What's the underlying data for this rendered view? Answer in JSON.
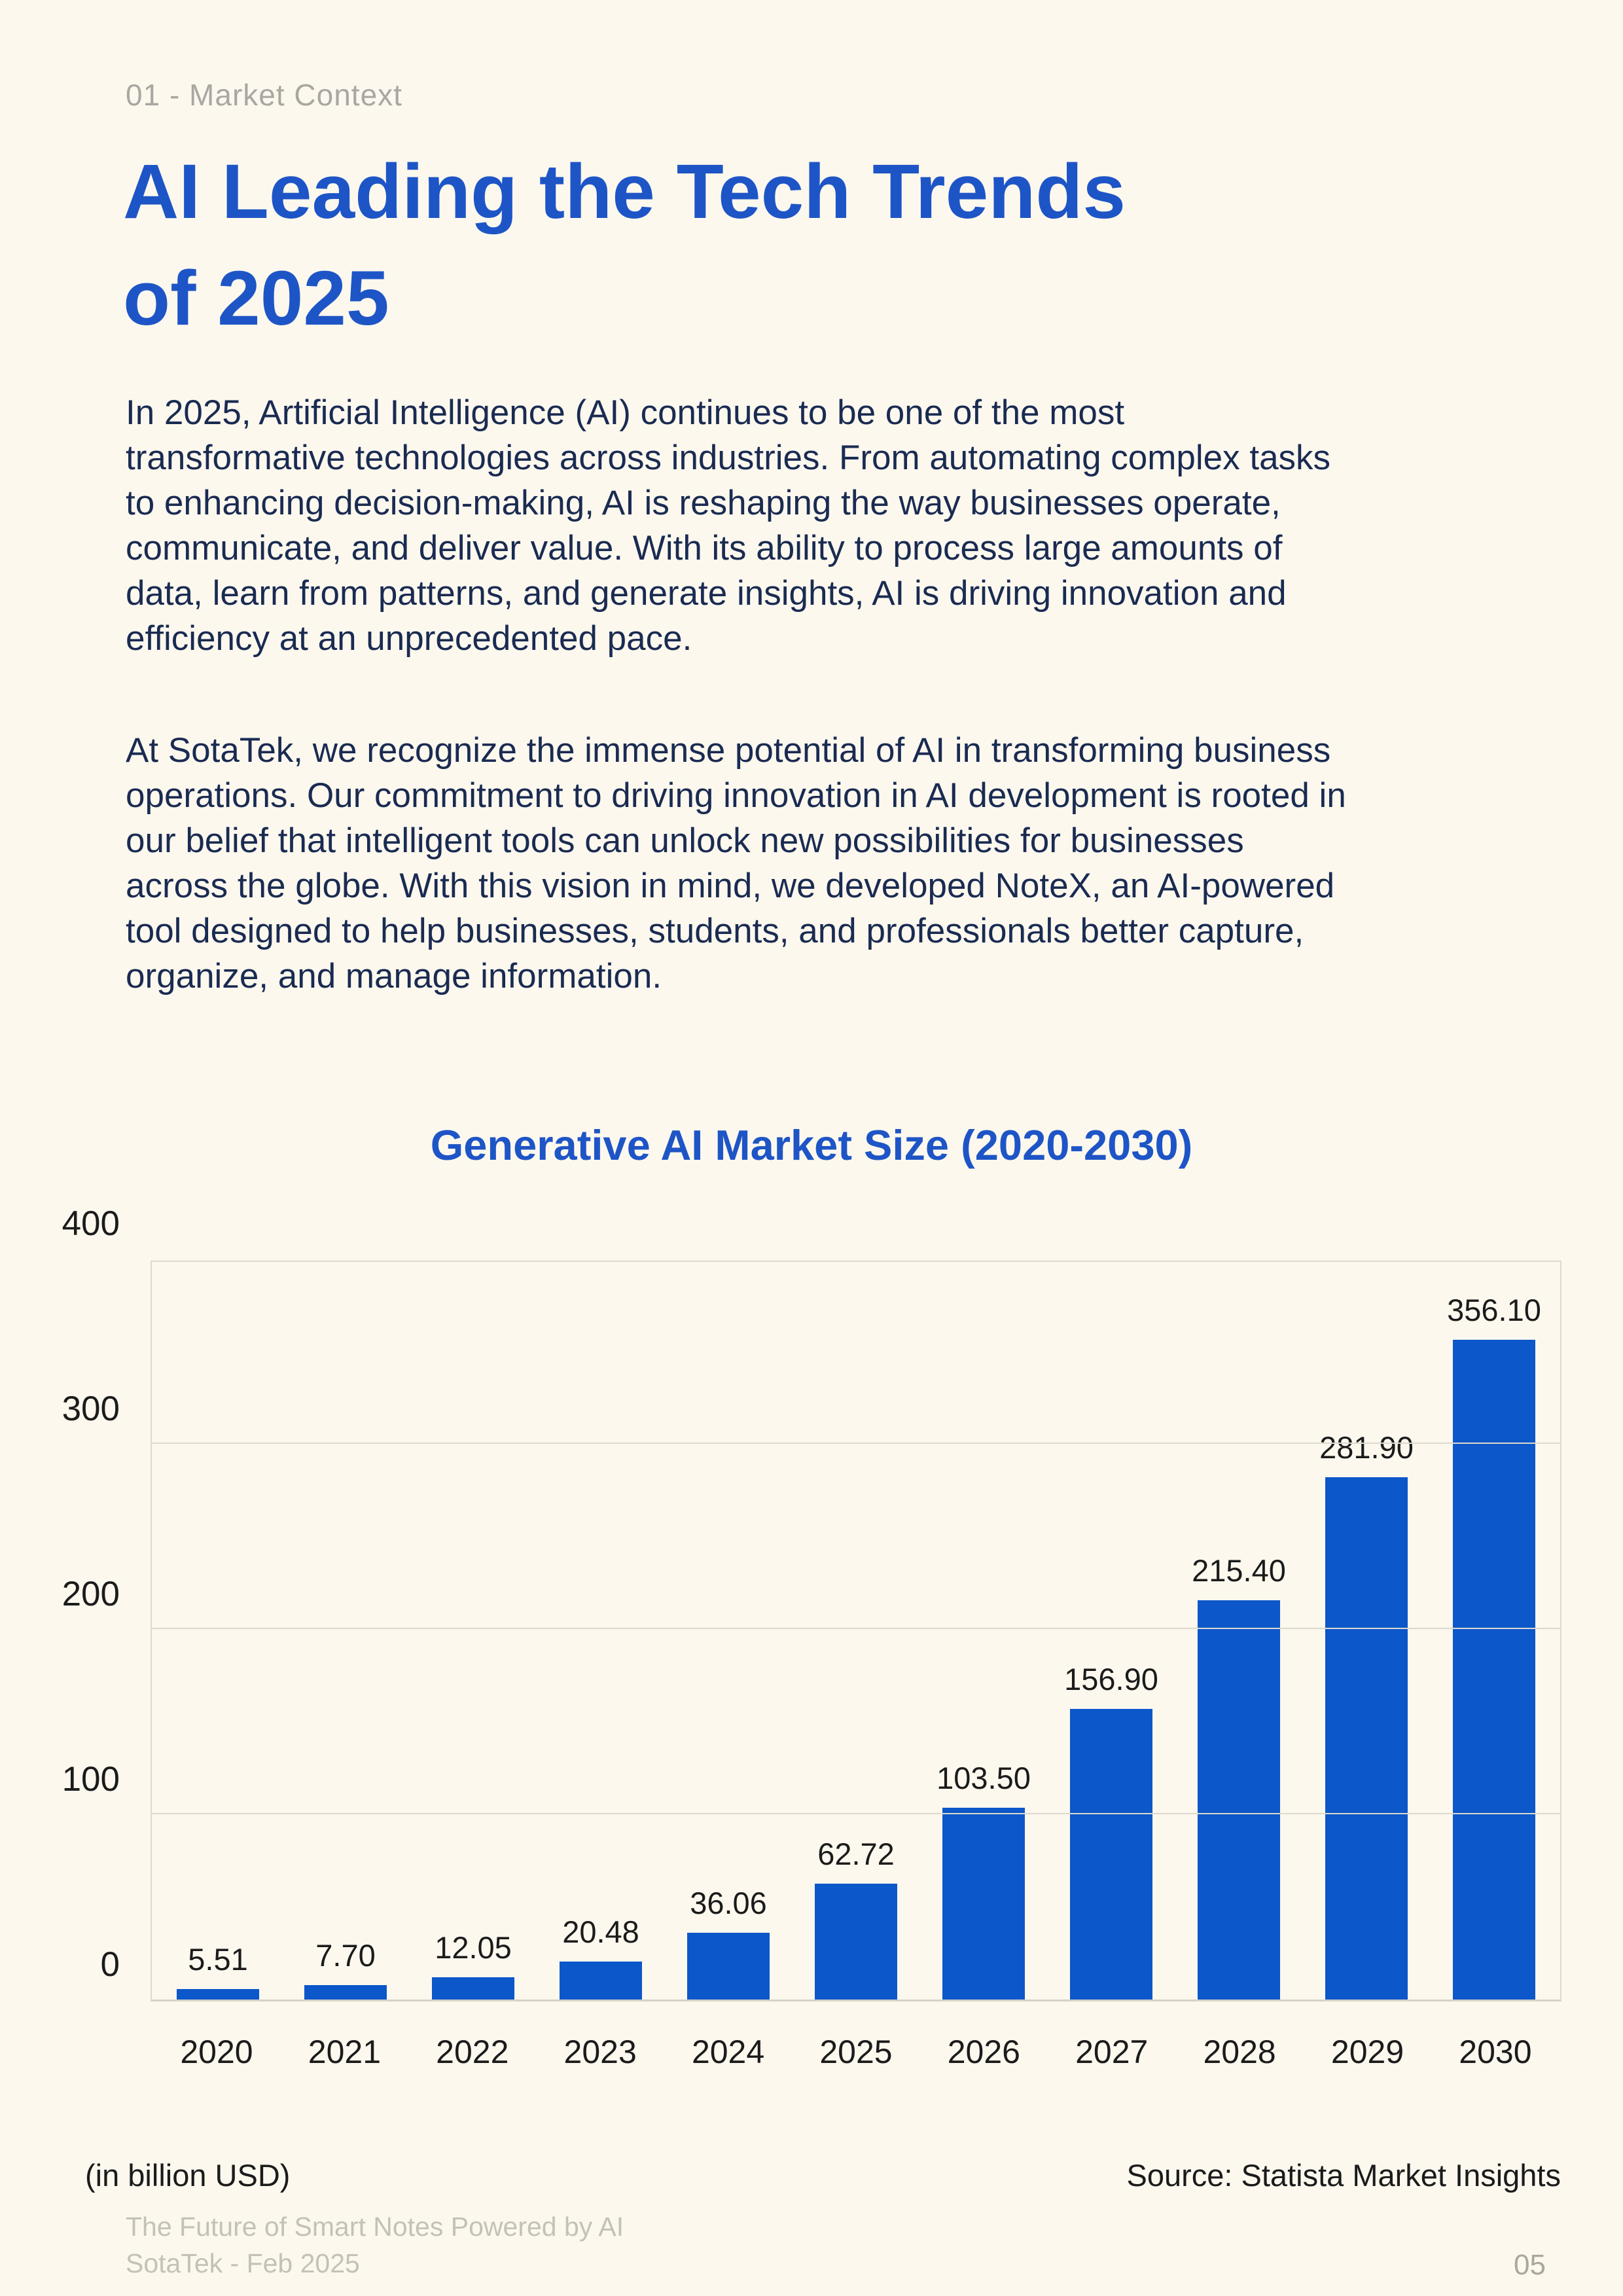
{
  "page": {
    "eyebrow": "01 - Market Context",
    "title_line1": "AI Leading the Tech Trends",
    "title_line2": "of 2025",
    "paragraph1_lines": [
      "In 2025, Artificial Intelligence (AI) continues to be one of the most",
      "transformative technologies across industries. From automating complex tasks",
      "to enhancing decision-making, AI is reshaping the way businesses operate,",
      "communicate, and deliver value. With its ability to process large amounts of",
      "data, learn from patterns, and generate insights, AI is driving innovation and",
      "efficiency at an unprecedented pace."
    ],
    "paragraph2_lines": [
      "At SotaTek, we recognize the immense potential of AI in transforming business",
      "operations. Our commitment to driving innovation in AI development is rooted in",
      "our belief that intelligent tools can unlock new possibilities for businesses",
      "across the globe. With this vision in mind, we developed NoteX, an AI-powered",
      "tool designed to help businesses, students, and professionals better capture,",
      "organize, and manage information."
    ],
    "page_number": "05"
  },
  "chart_data": {
    "type": "bar",
    "title": "Generative AI Market Size (2020-2030)",
    "categories": [
      "2020",
      "2021",
      "2022",
      "2023",
      "2024",
      "2025",
      "2026",
      "2027",
      "2028",
      "2029",
      "2030"
    ],
    "values": [
      5.51,
      7.7,
      12.05,
      20.48,
      36.06,
      62.72,
      103.5,
      156.9,
      215.4,
      281.9,
      356.1
    ],
    "y_ticks": [
      0,
      100,
      200,
      300,
      400
    ],
    "ylim": [
      0,
      400
    ],
    "xlabel": "",
    "ylabel": "",
    "unit_note": "(in billion USD)",
    "source_note": "Source: Statista Market Insights",
    "grid": true,
    "legend": false,
    "bar_color": "#0c57c9",
    "grid_color": "#ddd9cf",
    "label_color": "#1b1b1b"
  },
  "colors": {
    "background": "#fcf8ee",
    "brand_blue": "#1e55c6",
    "body_navy": "#1a2b52",
    "muted_gray": "#a8a7a2",
    "footer_gray": "#c3c1b8"
  },
  "footer": {
    "line1": "The Future of Smart Notes Powered by AI",
    "line2": "SotaTek - Feb 2025"
  }
}
